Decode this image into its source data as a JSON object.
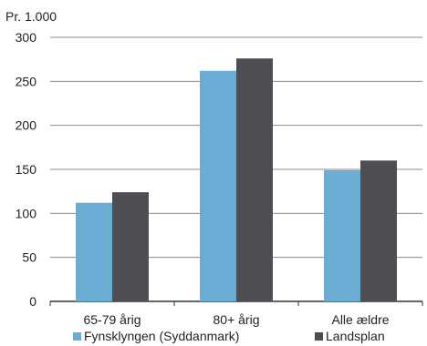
{
  "chart_data": {
    "type": "bar",
    "unit_label": "Pr. 1.000",
    "categories": [
      "65-79 årig",
      "80+ årig",
      "Alle ældre"
    ],
    "series": [
      {
        "name": "Fynsklyngen (Syddanmark)",
        "values": [
          112,
          262,
          149
        ],
        "color": "#6aaed6"
      },
      {
        "name": "Landsplan",
        "values": [
          124,
          276,
          160
        ],
        "color": "#4d4d52"
      }
    ],
    "yticks": [
      0,
      50,
      100,
      150,
      200,
      250,
      300
    ],
    "ylim": [
      0,
      300
    ],
    "grid": true,
    "legend_position": "bottom"
  }
}
